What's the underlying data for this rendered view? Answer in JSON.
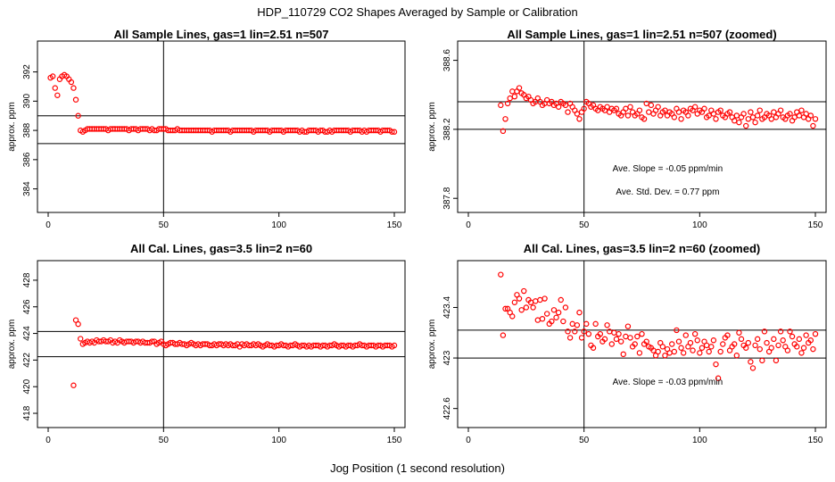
{
  "title": "HDP_110729  CO2 Shapes Averaged by Sample or Calibration",
  "xlabel": "Jog Position (1 second resolution)",
  "colors": {
    "points": "#ff0000",
    "lines": "#000000",
    "background": "#ffffff"
  },
  "chart_data": [
    {
      "type": "scatter",
      "title": "All Sample Lines, gas=1 lin=2.51 n=507",
      "ylabel": "approx. ppm",
      "xlim": [
        0,
        150
      ],
      "ylim": [
        383,
        393.5
      ],
      "x_ticks": [
        0,
        50,
        100,
        150
      ],
      "y_ticks": [
        384,
        386,
        388,
        390,
        392
      ],
      "vline": 50,
      "hlines": [
        389.0,
        387.1
      ],
      "point_color": "#ff0000",
      "x_start": 1,
      "y": [
        391.6,
        391.7,
        390.9,
        390.4,
        391.5,
        391.7,
        391.8,
        391.7,
        391.5,
        391.3,
        390.9,
        390.1,
        389.0,
        388.0,
        387.9,
        388.0,
        388.1,
        388.1,
        388.1,
        388.1,
        388.1,
        388.1,
        388.1,
        388.1,
        388.1,
        388.0,
        388.1,
        388.1,
        388.1,
        388.1,
        388.1,
        388.1,
        388.1,
        388.1,
        388.0,
        388.1,
        388.1,
        388.1,
        388.0,
        388.1,
        388.1,
        388.1,
        388.1,
        388.0,
        388.1,
        388.0,
        388.0,
        388.1,
        388.1,
        388.1,
        388.1,
        388.0,
        388.0,
        388.0,
        388.0,
        388.1,
        388.0,
        388.0,
        388.0,
        388.0,
        388.0,
        388.0,
        388.0,
        388.0,
        388.0,
        388.0,
        388.0,
        388.0,
        388.0,
        388.0,
        387.9,
        388.0,
        388.0,
        388.0,
        388.0,
        388.0,
        388.0,
        388.0,
        387.9,
        388.0,
        388.0,
        388.0,
        388.0,
        388.0,
        388.0,
        388.0,
        388.0,
        388.0,
        387.9,
        388.0,
        388.0,
        388.0,
        388.0,
        388.0,
        388.0,
        387.9,
        388.0,
        388.0,
        388.0,
        388.0,
        388.0,
        387.9,
        388.0,
        388.0,
        388.0,
        388.0,
        388.0,
        388.0,
        387.9,
        388.0,
        387.9,
        387.9,
        388.0,
        388.0,
        388.0,
        388.0,
        387.9,
        388.0,
        388.0,
        387.9,
        387.9,
        388.0,
        387.9,
        388.0,
        388.0,
        388.0,
        388.0,
        388.0,
        388.0,
        388.0,
        387.9,
        388.0,
        388.0,
        388.0,
        388.0,
        387.9,
        388.0,
        387.9,
        388.0,
        388.0,
        388.0,
        388.0,
        388.0,
        387.9,
        388.0,
        388.0,
        388.0,
        388.0,
        387.9,
        387.9
      ]
    },
    {
      "type": "scatter",
      "title": "All Sample Lines, gas=1 lin=2.51 n=507 (zoomed)",
      "ylabel": "approx. ppm",
      "xlim": [
        0,
        150
      ],
      "ylim": [
        387.77,
        388.66
      ],
      "x_ticks": [
        0,
        50,
        100,
        150
      ],
      "y_ticks": [
        387.8,
        388.2,
        388.6
      ],
      "vline": 50,
      "hlines": [
        388.36,
        388.2
      ],
      "point_color": "#ff0000",
      "x_start": 14,
      "y": [
        388.34,
        388.19,
        388.26,
        388.35,
        388.38,
        388.42,
        388.39,
        388.42,
        388.44,
        388.41,
        388.4,
        388.38,
        388.39,
        388.37,
        388.35,
        388.36,
        388.38,
        388.36,
        388.34,
        388.35,
        388.37,
        388.35,
        388.36,
        388.34,
        388.35,
        388.33,
        388.36,
        388.35,
        388.34,
        388.3,
        388.35,
        388.33,
        388.31,
        388.29,
        388.26,
        388.3,
        388.32,
        388.36,
        388.35,
        388.33,
        388.34,
        388.32,
        388.31,
        388.33,
        388.32,
        388.31,
        388.33,
        388.3,
        388.32,
        388.31,
        388.32,
        388.29,
        388.28,
        388.3,
        388.32,
        388.28,
        388.33,
        388.3,
        388.28,
        388.29,
        388.31,
        388.27,
        388.26,
        388.35,
        388.3,
        388.34,
        388.29,
        388.31,
        388.33,
        388.28,
        388.3,
        388.31,
        388.28,
        388.3,
        388.29,
        388.27,
        388.32,
        388.3,
        388.26,
        388.31,
        388.3,
        388.28,
        388.32,
        388.31,
        388.33,
        388.29,
        388.31,
        388.3,
        388.32,
        388.27,
        388.28,
        388.31,
        388.29,
        388.26,
        388.3,
        388.31,
        388.28,
        388.27,
        388.29,
        388.3,
        388.27,
        388.25,
        388.28,
        388.24,
        388.27,
        388.29,
        388.22,
        388.26,
        388.3,
        388.27,
        388.24,
        388.28,
        388.31,
        388.26,
        388.27,
        388.29,
        388.28,
        388.26,
        388.3,
        388.27,
        388.29,
        388.31,
        388.27,
        388.26,
        388.28,
        388.29,
        388.25,
        388.27,
        388.3,
        388.28,
        388.31,
        388.27,
        388.29,
        388.26,
        388.28,
        388.22,
        388.26
      ],
      "annotations": [
        "Ave. Slope = -0.05  ppm/min",
        "Ave. Std. Dev. =  0.77  ppm"
      ]
    },
    {
      "type": "scatter",
      "title": "All Cal. Lines, gas=3.5 lin=2 n=60",
      "ylabel": "approx. ppm",
      "xlim": [
        0,
        150
      ],
      "ylim": [
        417.6,
        428.8
      ],
      "x_ticks": [
        0,
        50,
        100,
        150
      ],
      "y_ticks": [
        418,
        420,
        422,
        424,
        426,
        428
      ],
      "vline": 50,
      "hlines": [
        424.15,
        422.25
      ],
      "point_color": "#ff0000",
      "x_start": 11,
      "y": [
        420.1,
        425.0,
        424.7,
        423.6,
        423.2,
        423.3,
        423.4,
        423.3,
        423.4,
        423.3,
        423.5,
        423.4,
        423.4,
        423.5,
        423.4,
        423.4,
        423.5,
        423.3,
        423.4,
        423.3,
        423.5,
        423.4,
        423.3,
        423.4,
        423.4,
        423.4,
        423.3,
        423.4,
        423.4,
        423.3,
        423.4,
        423.3,
        423.3,
        423.3,
        423.4,
        423.4,
        423.2,
        423.3,
        423.4,
        423.2,
        423.1,
        423.2,
        423.3,
        423.3,
        423.2,
        423.2,
        423.3,
        423.2,
        423.2,
        423.1,
        423.2,
        423.3,
        423.2,
        423.1,
        423.2,
        423.1,
        423.2,
        423.2,
        423.2,
        423.1,
        423.1,
        423.2,
        423.1,
        423.2,
        423.2,
        423.1,
        423.2,
        423.1,
        423.2,
        423.1,
        423.1,
        423.2,
        423.0,
        423.2,
        423.1,
        423.2,
        423.1,
        423.1,
        423.2,
        423.1,
        423.2,
        423.1,
        423.0,
        423.1,
        423.2,
        423.1,
        423.1,
        423.0,
        423.1,
        423.1,
        423.2,
        423.1,
        423.1,
        423.0,
        423.1,
        423.1,
        423.2,
        423.1,
        423.0,
        423.1,
        423.1,
        423.0,
        423.1,
        423.0,
        423.1,
        423.1,
        423.1,
        423.0,
        423.1,
        423.1,
        423.0,
        423.1,
        423.1,
        423.2,
        423.1,
        423.0,
        423.1,
        423.1,
        423.0,
        423.1,
        423.1,
        423.0,
        423.1,
        423.1,
        423.2,
        423.1,
        423.1,
        423.0,
        423.1,
        423.1,
        423.1,
        423.0,
        423.1,
        423.1,
        423.0,
        423.1,
        423.1,
        423.1,
        423.0,
        423.1
      ]
    },
    {
      "type": "scatter",
      "title": "All Cal. Lines, gas=3.5 lin=2 n=60 (zoomed)",
      "ylabel": "approx. ppm",
      "xlim": [
        0,
        150
      ],
      "ylim": [
        422.52,
        423.7
      ],
      "x_ticks": [
        0,
        50,
        100,
        150
      ],
      "y_ticks": [
        422.6,
        423.0,
        423.4
      ],
      "vline": 50,
      "hlines": [
        423.22,
        423.0
      ],
      "point_color": "#ff0000",
      "x_start": 14,
      "y": [
        423.66,
        423.18,
        423.39,
        423.39,
        423.36,
        423.33,
        423.44,
        423.5,
        423.47,
        423.38,
        423.53,
        423.4,
        423.46,
        423.44,
        423.4,
        423.45,
        423.3,
        423.46,
        423.31,
        423.47,
        423.35,
        423.27,
        423.29,
        423.38,
        423.32,
        423.36,
        423.46,
        423.29,
        423.4,
        423.21,
        423.16,
        423.27,
        423.21,
        423.26,
        423.36,
        423.16,
        423.21,
        423.27,
        423.19,
        423.1,
        423.08,
        423.27,
        423.17,
        423.19,
        423.13,
        423.15,
        423.26,
        423.21,
        423.11,
        423.2,
        423.15,
        423.19,
        423.13,
        423.03,
        423.17,
        423.25,
        423.16,
        423.09,
        423.11,
        423.17,
        423.04,
        423.19,
        423.11,
        423.13,
        423.09,
        423.08,
        423.06,
        423.02,
        423.05,
        423.12,
        423.09,
        423.02,
        423.07,
        423.04,
        423.11,
        423.05,
        423.22,
        423.13,
        423.08,
        423.04,
        423.18,
        423.09,
        423.12,
        423.06,
        423.19,
        423.14,
        423.04,
        423.08,
        423.13,
        423.1,
        423.05,
        423.09,
        423.14,
        422.95,
        422.84,
        423.05,
        423.11,
        423.16,
        423.18,
        423.06,
        423.09,
        423.11,
        423.02,
        423.2,
        423.15,
        423.1,
        423.08,
        423.12,
        422.97,
        422.92,
        423.1,
        423.15,
        423.07,
        422.98,
        423.21,
        423.12,
        423.05,
        423.08,
        423.15,
        422.98,
        423.1,
        423.21,
        423.14,
        423.09,
        423.06,
        423.21,
        423.17,
        423.11,
        423.09,
        423.15,
        423.04,
        423.08,
        423.18,
        423.12,
        423.14,
        423.07,
        423.19
      ],
      "annotations": [
        "Ave. Slope = -0.03  ppm/min"
      ]
    }
  ]
}
